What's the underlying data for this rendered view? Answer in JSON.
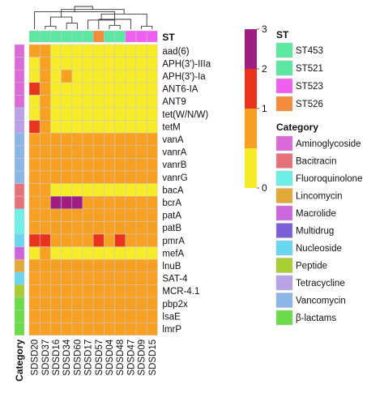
{
  "chart_data": {
    "type": "heatmap",
    "title": "",
    "columns": [
      "SDSD20",
      "SDSD37",
      "SDSD16",
      "SDSD34",
      "SDSD60",
      "SDSD17",
      "SDSD57",
      "SDSD04",
      "SDSD48",
      "SDSD47",
      "SDSD09",
      "SDSD15"
    ],
    "rows": [
      "aad(6)",
      "APH(3')-IIIa",
      "APH(3')-Ia",
      "ANT6-IA",
      "ANT9",
      "tet(W/N/W)",
      "tetM",
      "vanA",
      "vanrA",
      "vanrB",
      "vanrG",
      "bacA",
      "bcrA",
      "patA",
      "patB",
      "pmrA",
      "mefA",
      "lnuB",
      "SAT-4",
      "MCR-4.1",
      "pbp2x",
      "lsaE",
      "lmrP"
    ],
    "values": [
      [
        1,
        1,
        0,
        0,
        0,
        0,
        0,
        0,
        0,
        0,
        0,
        0
      ],
      [
        0,
        1,
        0,
        0,
        0,
        0,
        0,
        0,
        0,
        0,
        0,
        0
      ],
      [
        0,
        1,
        0,
        1,
        0,
        0,
        0,
        0,
        0,
        0,
        0,
        0
      ],
      [
        2,
        1,
        0,
        0,
        0,
        0,
        0,
        0,
        0,
        0,
        0,
        0
      ],
      [
        0,
        1,
        0,
        0,
        0,
        0,
        0,
        0,
        0,
        0,
        0,
        0
      ],
      [
        0,
        1,
        0,
        0,
        0,
        0,
        0,
        0,
        0,
        0,
        0,
        0
      ],
      [
        2,
        1,
        0,
        0,
        0,
        0,
        0,
        0,
        0,
        0,
        0,
        0
      ],
      [
        1,
        1,
        1,
        1,
        1,
        1,
        1,
        1,
        1,
        1,
        1,
        1
      ],
      [
        1,
        1,
        1,
        1,
        1,
        1,
        1,
        1,
        1,
        1,
        1,
        1
      ],
      [
        1,
        1,
        1,
        1,
        1,
        1,
        1,
        1,
        1,
        1,
        1,
        1
      ],
      [
        1,
        1,
        1,
        1,
        1,
        1,
        1,
        1,
        1,
        1,
        1,
        1
      ],
      [
        1,
        1,
        0,
        0,
        0,
        0,
        0,
        0,
        0,
        0,
        0,
        0
      ],
      [
        1,
        1,
        3,
        3,
        3,
        1,
        1,
        1,
        1,
        1,
        1,
        1
      ],
      [
        1,
        1,
        1,
        1,
        1,
        1,
        1,
        1,
        1,
        1,
        1,
        1
      ],
      [
        1,
        1,
        1,
        1,
        1,
        1,
        1,
        1,
        1,
        1,
        1,
        1
      ],
      [
        2,
        2,
        1,
        1,
        1,
        1,
        2,
        1,
        2,
        1,
        1,
        1
      ],
      [
        0,
        1,
        0,
        0,
        0,
        0,
        0,
        0,
        0,
        0,
        0,
        0
      ],
      [
        1,
        1,
        1,
        1,
        1,
        1,
        1,
        1,
        1,
        1,
        1,
        1
      ],
      [
        1,
        1,
        1,
        1,
        1,
        1,
        1,
        1,
        1,
        1,
        1,
        1
      ],
      [
        1,
        1,
        1,
        1,
        1,
        1,
        1,
        1,
        1,
        1,
        1,
        1
      ],
      [
        1,
        1,
        1,
        1,
        1,
        1,
        1,
        1,
        1,
        1,
        1,
        1
      ],
      [
        1,
        1,
        1,
        1,
        1,
        1,
        1,
        1,
        1,
        1,
        1,
        1
      ],
      [
        1,
        1,
        1,
        1,
        1,
        1,
        1,
        1,
        1,
        1,
        1,
        1
      ]
    ],
    "color_scale": {
      "min": 0,
      "max": 3,
      "ticks": [
        "3",
        "2",
        "1",
        "0"
      ],
      "colors": [
        "#f7ec2a",
        "#f7a023",
        "#e8341f",
        "#9e1e82"
      ]
    },
    "st_label": "ST",
    "st_annotation": [
      "ST453",
      "ST453",
      "ST453",
      "ST453",
      "ST453",
      "ST453",
      "ST526",
      "ST453",
      "ST453",
      "ST523",
      "ST523",
      "ST523"
    ],
    "st_legend": {
      "title": "ST",
      "items": [
        {
          "label": "ST453",
          "color": "#5ee6a3"
        },
        {
          "label": "ST521",
          "color": "#5ee6a3"
        },
        {
          "label": "ST523",
          "color": "#f060f0"
        },
        {
          "label": "ST526",
          "color": "#f08c3c"
        }
      ]
    },
    "category_label": "Category",
    "row_category": [
      "Aminoglycoside",
      "Aminoglycoside",
      "Aminoglycoside",
      "Aminoglycoside",
      "Aminoglycoside",
      "Tetracycline",
      "Tetracycline",
      "Vancomycin",
      "Vancomycin",
      "Vancomycin",
      "Vancomycin",
      "Bacitracin",
      "Bacitracin",
      "Fluoroquinolone",
      "Fluoroquinolone",
      "Nucleoside",
      "Macrolide",
      "Lincomycin",
      "Nucleoside",
      "Peptide",
      "β-lactams",
      "β-lactams",
      "β-lactams"
    ],
    "category_legend": {
      "title": "Category",
      "items": [
        {
          "label": "Aminoglycoside",
          "color": "#d96ad6"
        },
        {
          "label": "Bacitracin",
          "color": "#e5727a"
        },
        {
          "label": "Fluoroquinolone",
          "color": "#6ff0e6"
        },
        {
          "label": "Lincomycin",
          "color": "#e2a838"
        },
        {
          "label": "Macrolide",
          "color": "#cc66dd"
        },
        {
          "label": "Multidrug",
          "color": "#7b5fd6"
        },
        {
          "label": "Nucleoside",
          "color": "#6ad6f0"
        },
        {
          "label": "Peptide",
          "color": "#aacc33"
        },
        {
          "label": "Tetracycline",
          "color": "#b8a2e6"
        },
        {
          "label": "Vancomycin",
          "color": "#8cb6e6"
        },
        {
          "label": "β-lactams",
          "color": "#6ddc4a"
        }
      ]
    },
    "dendrogram": {
      "merges": [
        [
          1,
          2,
          0.2
        ],
        [
          7,
          8,
          0.25
        ],
        [
          10,
          11,
          0.2
        ],
        [
          3,
          4,
          0.4
        ],
        [
          5,
          13,
          0.6
        ],
        [
          6,
          9,
          0.65
        ],
        [
          12,
          15,
          0.8
        ],
        [
          14,
          16,
          1.0
        ],
        [
          0,
          17,
          1.15
        ],
        [
          18,
          19,
          1.3
        ],
        [
          20,
          21,
          1.5
        ]
      ]
    }
  }
}
